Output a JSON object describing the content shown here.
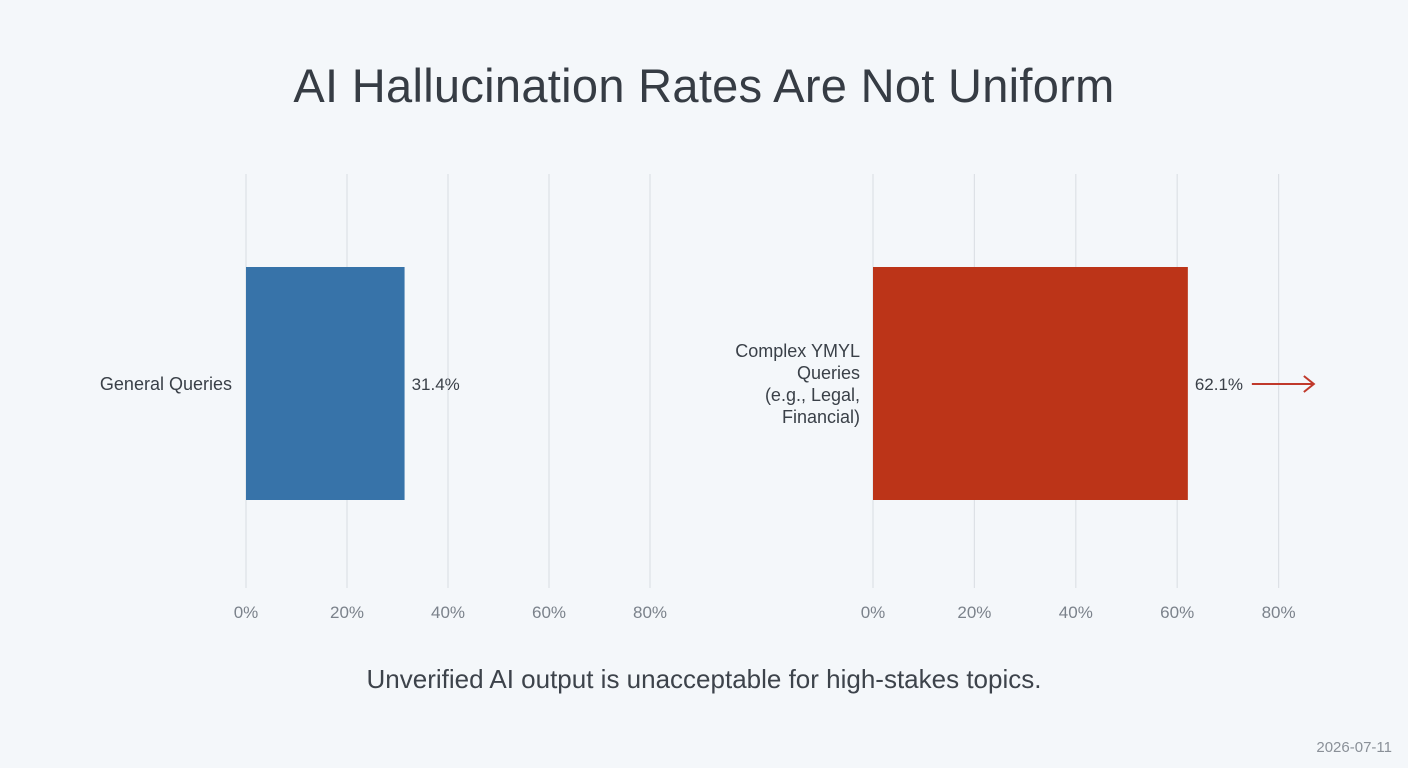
{
  "title": "AI Hallucination Rates Are Not Uniform",
  "footer_note": "Unverified AI output is unacceptable for high-stakes topics.",
  "date": "2026-07-11",
  "colors": {
    "background": "#f4f7fa",
    "general_bar": "#3773a9",
    "ymyl_bar": "#bc3418",
    "arrow": "#c0392b",
    "grid": "#dde1e6"
  },
  "chart_data": [
    {
      "type": "bar",
      "orientation": "horizontal",
      "categories": [
        "General Queries"
      ],
      "values": [
        31.4
      ],
      "value_labels": [
        "31.4%"
      ],
      "xlim": [
        0,
        80
      ],
      "xticks": [
        0,
        20,
        40,
        60,
        80
      ],
      "xtick_labels": [
        "0%",
        "20%",
        "40%",
        "60%",
        "80%"
      ],
      "grid": true,
      "color": "#3773a9"
    },
    {
      "type": "bar",
      "orientation": "horizontal",
      "categories": [
        "Complex YMYL Queries (e.g., Legal, Financial)"
      ],
      "category_label_lines": [
        "Complex YMYL",
        "Queries",
        "(e.g., Legal,",
        "Financial)"
      ],
      "values": [
        62.1
      ],
      "value_labels": [
        "62.1%"
      ],
      "xlim": [
        0,
        80
      ],
      "xticks": [
        0,
        20,
        40,
        60,
        80
      ],
      "xtick_labels": [
        "0%",
        "20%",
        "40%",
        "60%",
        "80%"
      ],
      "grid": true,
      "color": "#bc3418",
      "annotation": "right-arrow"
    }
  ]
}
